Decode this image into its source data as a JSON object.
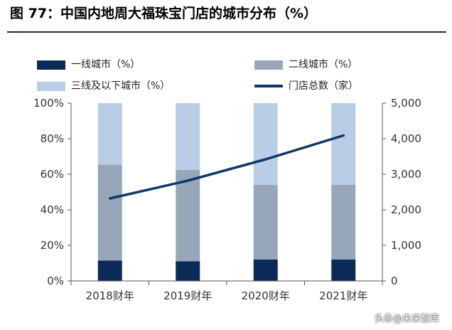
{
  "title": "图 77：中国内地周大福珠宝门店的城市分布（%）",
  "watermark": "头条@未来智库",
  "colors": {
    "tier1": "#0b2a57",
    "tier2": "#97a7b9",
    "tier3": "#b9cde6",
    "line": "#0f3a66",
    "axis": "#555555",
    "text": "#333333"
  },
  "legend": {
    "tier1": "一线城市（%）",
    "tier2": "二线城市（%）",
    "tier3": "三线及以下城市（%）",
    "stores": "门店总数（家）"
  },
  "chart_data": {
    "type": "bar",
    "stacked": true,
    "categories": [
      "2018财年",
      "2019财年",
      "2020财年",
      "2021财年"
    ],
    "series": [
      {
        "name": "一线城市（%）",
        "values": [
          11.5,
          11,
          12,
          12
        ]
      },
      {
        "name": "二线城市（%）",
        "values": [
          54,
          51.5,
          42,
          42
        ]
      },
      {
        "name": "三线及以下城市（%）",
        "values": [
          34.5,
          37.5,
          46,
          46
        ]
      }
    ],
    "line_series": {
      "name": "门店总数（家）",
      "axis": "right",
      "values": [
        2320,
        2820,
        3420,
        4090
      ]
    },
    "ylim_left": [
      0,
      100
    ],
    "ylim_right": [
      0,
      5000
    ],
    "left_ticks": [
      "0%",
      "20%",
      "40%",
      "60%",
      "80%",
      "100%"
    ],
    "right_ticks": [
      "0",
      "1,000",
      "2,000",
      "3,000",
      "4,000",
      "5,000"
    ],
    "grid": false,
    "legend_position": "top"
  }
}
